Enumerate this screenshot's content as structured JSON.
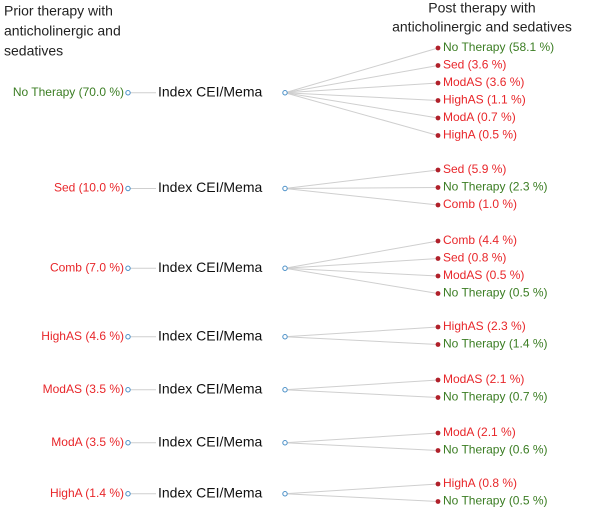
{
  "header": {
    "left": [
      "Prior therapy with",
      "anticholinergic and",
      "sedatives"
    ],
    "right": [
      "Post therapy with",
      "anticholinergic and sedatives"
    ]
  },
  "groups": [
    {
      "left": {
        "text": "No Therapy (70.0 %)",
        "color": "#3b7d23"
      },
      "center": "Index CEI/Mema",
      "right": [
        {
          "text": "No Therapy (58.1 %)",
          "color": "#3b7d23"
        },
        {
          "text": "Sed (3.6 %)",
          "color": "#e8262a"
        },
        {
          "text": "ModAS (3.6 %)",
          "color": "#e8262a"
        },
        {
          "text": "HighAS (1.1 %)",
          "color": "#e8262a"
        },
        {
          "text": "ModA (0.7 %)",
          "color": "#e8262a"
        },
        {
          "text": "HighA (0.5 %)",
          "color": "#e8262a"
        }
      ]
    },
    {
      "left": {
        "text": "Sed (10.0 %)",
        "color": "#e8262a"
      },
      "center": "Index CEI/Mema",
      "right": [
        {
          "text": "Sed (5.9 %)",
          "color": "#e8262a"
        },
        {
          "text": "No Therapy (2.3 %)",
          "color": "#3b7d23"
        },
        {
          "text": "Comb (1.0 %)",
          "color": "#e8262a"
        }
      ]
    },
    {
      "left": {
        "text": "Comb (7.0 %)",
        "color": "#e8262a"
      },
      "center": "Index CEI/Mema",
      "right": [
        {
          "text": "Comb (4.4 %)",
          "color": "#e8262a"
        },
        {
          "text": "Sed (0.8 %)",
          "color": "#e8262a"
        },
        {
          "text": "ModAS (0.5 %)",
          "color": "#e8262a"
        },
        {
          "text": "No Therapy (0.5 %)",
          "color": "#3b7d23"
        }
      ]
    },
    {
      "left": {
        "text": "HighAS (4.6 %)",
        "color": "#e8262a"
      },
      "center": "Index CEI/Mema",
      "right": [
        {
          "text": "HighAS (2.3 %)",
          "color": "#e8262a"
        },
        {
          "text": "No Therapy (1.4 %)",
          "color": "#3b7d23"
        }
      ]
    },
    {
      "left": {
        "text": "ModAS (3.5 %)",
        "color": "#e8262a"
      },
      "center": "Index CEI/Mema",
      "right": [
        {
          "text": "ModAS (2.1 %)",
          "color": "#e8262a"
        },
        {
          "text": "No Therapy (0.7 %)",
          "color": "#3b7d23"
        }
      ]
    },
    {
      "left": {
        "text": "ModA (3.5 %)",
        "color": "#e8262a"
      },
      "center": "Index CEI/Mema",
      "right": [
        {
          "text": "ModA (2.1 %)",
          "color": "#e8262a"
        },
        {
          "text": "No Therapy (0.6 %)",
          "color": "#3b7d23"
        }
      ]
    },
    {
      "left": {
        "text": "HighA (1.4 %)",
        "color": "#e8262a"
      },
      "center": "Index CEI/Mema",
      "right": [
        {
          "text": "HighA (0.8 %)",
          "color": "#e8262a"
        },
        {
          "text": "No Therapy (0.5 %)",
          "color": "#3b7d23"
        }
      ]
    }
  ]
}
